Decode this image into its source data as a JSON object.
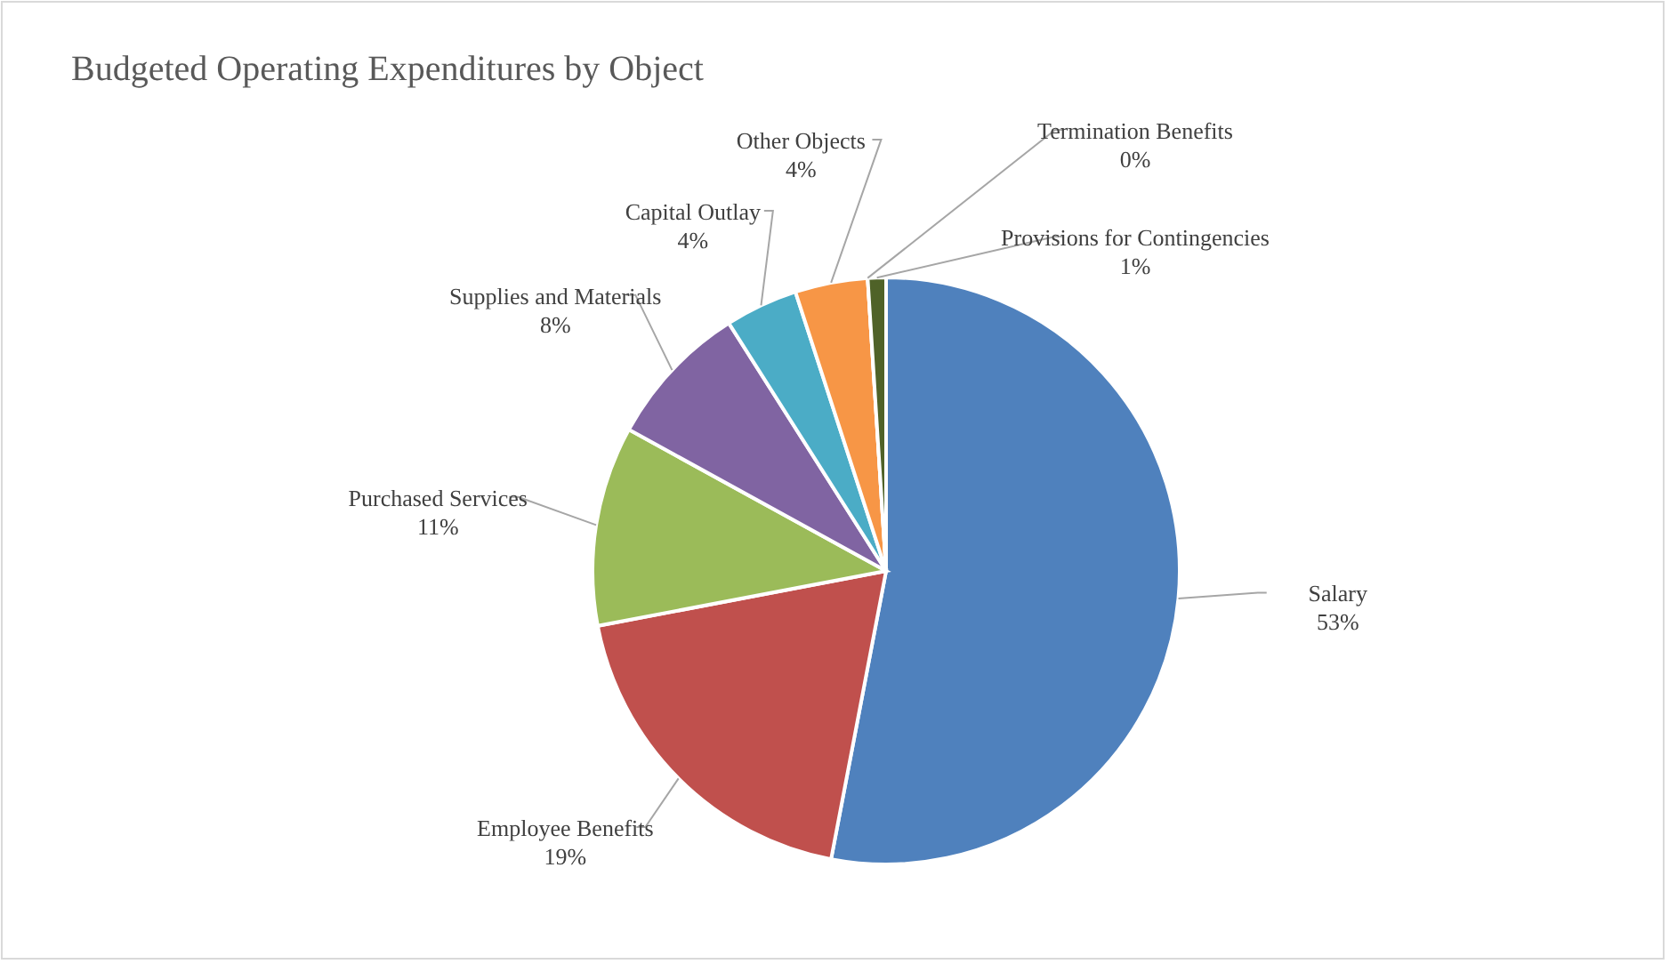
{
  "chart_data": {
    "type": "pie",
    "title": "Budgeted Operating Expenditures by Object",
    "categories": [
      "Salary",
      "Employee Benefits",
      "Purchased Services",
      "Supplies and Materials",
      "Capital Outlay",
      "Other Objects",
      "Termination Benefits",
      "Provisions for Contingencies"
    ],
    "values": [
      53,
      19,
      11,
      8,
      4,
      4,
      0,
      1
    ],
    "colors": [
      "#4f81bd",
      "#c0504d",
      "#9bbb59",
      "#8064a2",
      "#4bacc6",
      "#f79646",
      "#2c4d75",
      "#4f6228"
    ],
    "value_labels": [
      "53%",
      "19%",
      "11%",
      "8%",
      "4%",
      "4%",
      "0%",
      "1%"
    ]
  }
}
